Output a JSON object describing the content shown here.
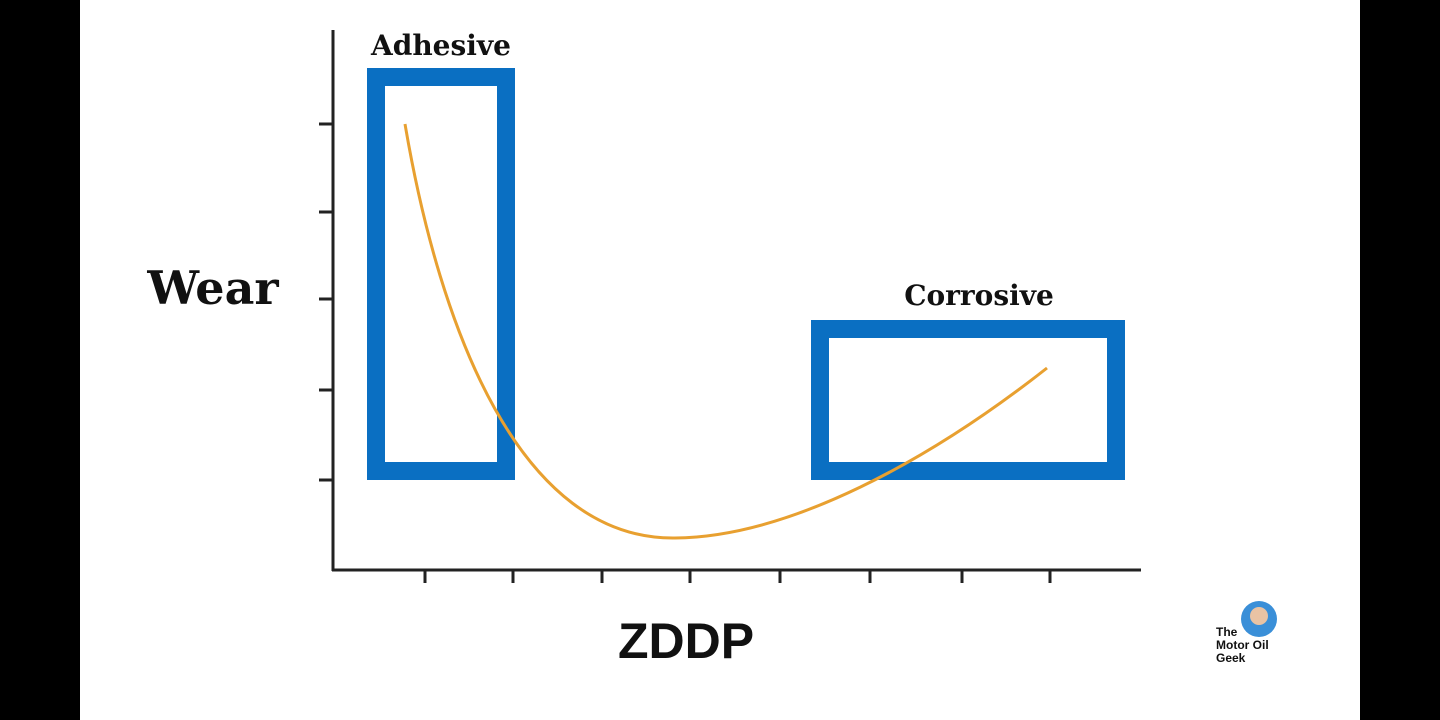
{
  "diagram": {
    "y_axis_label": "Wear",
    "x_axis_label": "ZDDP",
    "regions": [
      {
        "label": "Adhesive"
      },
      {
        "label": "Corrosive"
      }
    ],
    "logo": {
      "lines": [
        "The",
        "Motor Oil",
        "Geek"
      ]
    }
  }
}
